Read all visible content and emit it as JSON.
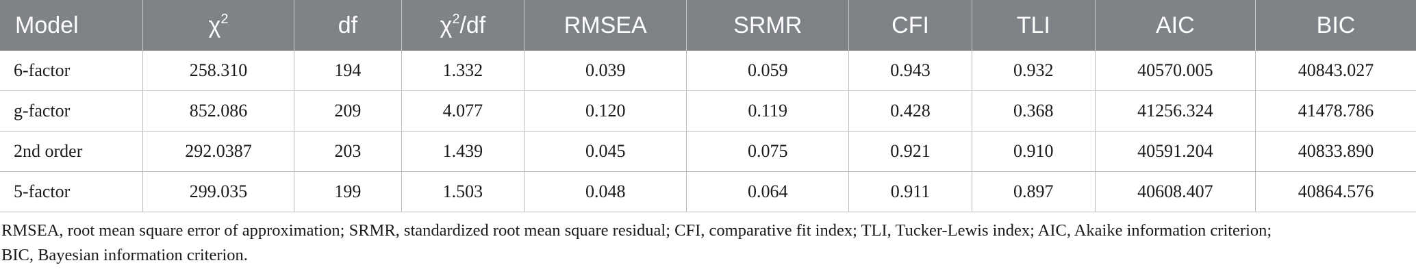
{
  "table": {
    "headers": [
      {
        "label": "Model",
        "sup": ""
      },
      {
        "label": "χ",
        "sup": "2"
      },
      {
        "label": "df",
        "sup": ""
      },
      {
        "label": "χ",
        "sup": "2",
        "suffix": "/df"
      },
      {
        "label": "RMSEA",
        "sup": ""
      },
      {
        "label": "SRMR",
        "sup": ""
      },
      {
        "label": "CFI",
        "sup": ""
      },
      {
        "label": "TLI",
        "sup": ""
      },
      {
        "label": "AIC",
        "sup": ""
      },
      {
        "label": "BIC",
        "sup": ""
      }
    ],
    "rows": [
      [
        "6-factor",
        "258.310",
        "194",
        "1.332",
        "0.039",
        "0.059",
        "0.943",
        "0.932",
        "40570.005",
        "40843.027"
      ],
      [
        "g-factor",
        "852.086",
        "209",
        "4.077",
        "0.120",
        "0.119",
        "0.428",
        "0.368",
        "41256.324",
        "41478.786"
      ],
      [
        "2nd order",
        "292.0387",
        "203",
        "1.439",
        "0.045",
        "0.075",
        "0.921",
        "0.910",
        "40591.204",
        "40833.890"
      ],
      [
        "5-factor",
        "299.035",
        "199",
        "1.503",
        "0.048",
        "0.064",
        "0.911",
        "0.897",
        "40608.407",
        "40864.576"
      ]
    ]
  },
  "footnote": {
    "line1": "RMSEA, root mean square error of approximation; SRMR, standardized root mean square residual; CFI, comparative fit index; TLI, Tucker-Lewis index; AIC, Akaike information criterion;",
    "line2": "BIC, Bayesian information criterion."
  },
  "colors": {
    "header_bg": "#7f8387",
    "header_text": "#ffffff",
    "grid": "#bdbdbd"
  }
}
